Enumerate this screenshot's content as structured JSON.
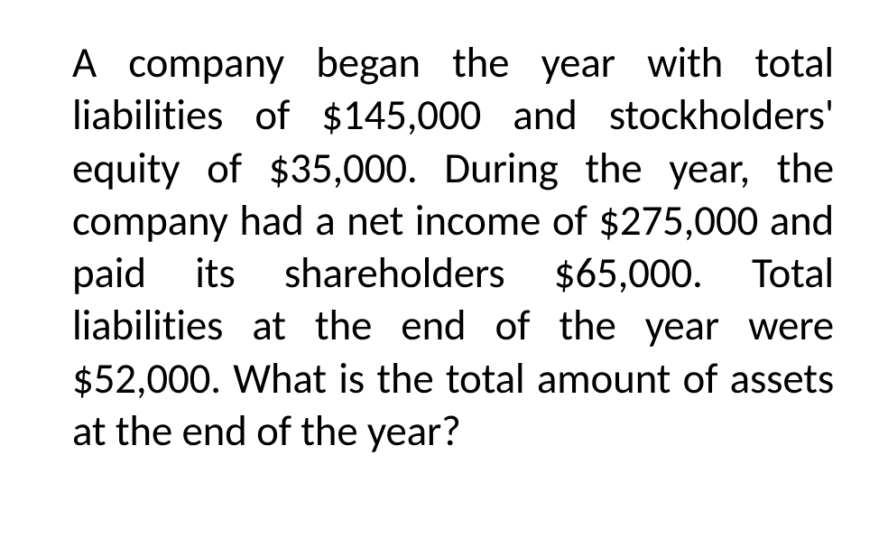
{
  "paragraph": {
    "text": "A company began the year with total liabilities of $145,000 and stockholders' equity of $35,000. During the year, the company had a net income of $275,000 and paid its shareholders $65,000. Total liabilities at the end of the year were $52,000. What is the total amount of assets at the end of the year?",
    "font_size": 47,
    "font_family": "Calibri, 'Segoe UI', Arial, sans-serif",
    "text_color": "#000000",
    "background_color": "#ffffff",
    "text_align": "justify",
    "line_height": 1.24
  }
}
